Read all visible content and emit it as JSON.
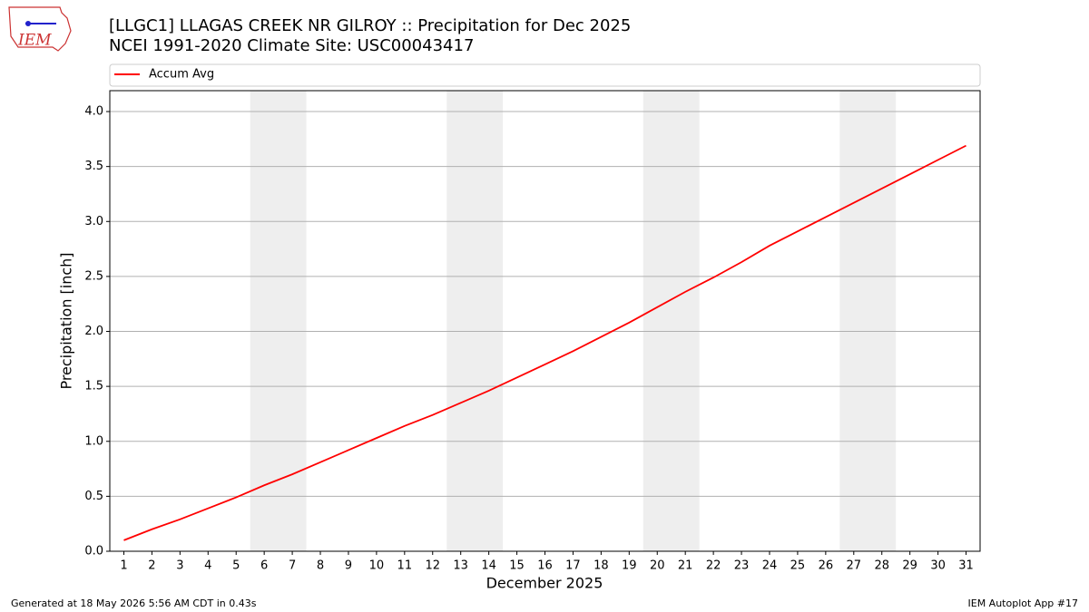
{
  "chart_data": {
    "type": "line",
    "title": "[LLGC1] LLAGAS CREEK NR GILROY :: Precipitation for Dec 2025",
    "subtitle": "NCEI 1991-2020 Climate Site: USC00043417",
    "x_label": "December 2025",
    "y_label": "Precipitation [inch]",
    "x": [
      1,
      2,
      3,
      4,
      5,
      6,
      7,
      8,
      9,
      10,
      11,
      12,
      13,
      14,
      15,
      16,
      17,
      18,
      19,
      20,
      21,
      22,
      23,
      24,
      25,
      26,
      27,
      28,
      29,
      30,
      31
    ],
    "series": [
      {
        "name": "Accum Avg",
        "color": "#ff0000",
        "values": [
          0.1,
          0.2,
          0.29,
          0.39,
          0.49,
          0.6,
          0.7,
          0.81,
          0.92,
          1.03,
          1.14,
          1.24,
          1.35,
          1.46,
          1.58,
          1.7,
          1.82,
          1.95,
          2.08,
          2.22,
          2.36,
          2.49,
          2.63,
          2.78,
          2.91,
          3.04,
          3.17,
          3.3,
          3.43,
          3.56,
          3.69
        ]
      }
    ],
    "weekend_bands": [
      [
        5.5,
        7.5
      ],
      [
        12.5,
        14.5
      ],
      [
        19.5,
        21.5
      ],
      [
        26.5,
        28.5
      ]
    ],
    "band_color": "#eeeeee",
    "xlim": [
      0.5,
      31.5
    ],
    "xticks": [
      1,
      2,
      3,
      4,
      5,
      6,
      7,
      8,
      9,
      10,
      11,
      12,
      13,
      14,
      15,
      16,
      17,
      18,
      19,
      20,
      21,
      22,
      23,
      24,
      25,
      26,
      27,
      28,
      29,
      30,
      31
    ],
    "ylim": [
      0,
      4.19
    ],
    "yticks": [
      {
        "value": 0,
        "label": "0.0"
      },
      {
        "value": 0.5,
        "label": "0.5"
      },
      {
        "value": 1,
        "label": "1.0"
      },
      {
        "value": 1.5,
        "label": "1.5"
      },
      {
        "value": 2,
        "label": "2.0"
      },
      {
        "value": 2.5,
        "label": "2.5"
      },
      {
        "value": 3,
        "label": "3.0"
      },
      {
        "value": 3.5,
        "label": "3.5"
      },
      {
        "value": 4,
        "label": "4.0"
      }
    ],
    "grid": true,
    "legend": "top"
  },
  "footer": {
    "left": "Generated at 18 May 2026 5:56 AM CDT in 0.43s",
    "right": "IEM Autoplot App #17"
  },
  "logo": {
    "text": "IEM"
  }
}
